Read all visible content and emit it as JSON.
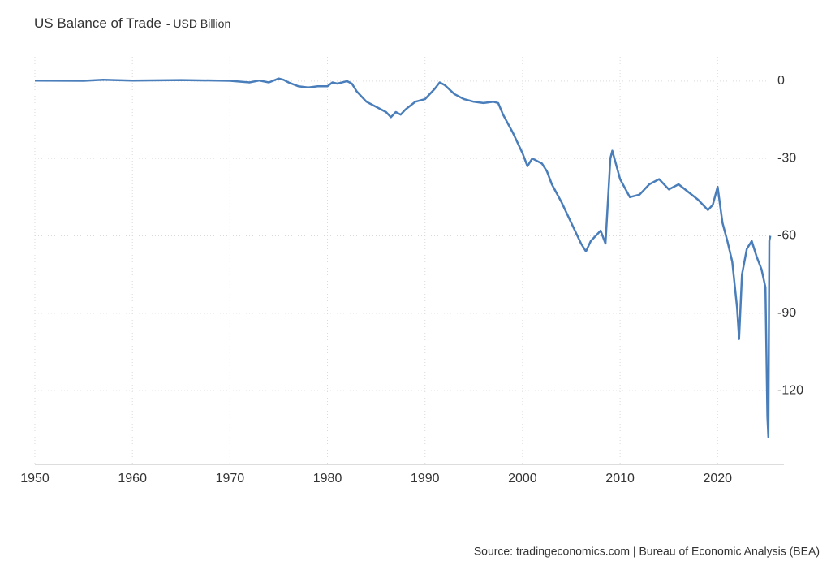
{
  "chart_data": {
    "type": "line",
    "title": "US Balance of Trade",
    "subtitle": "- USD Billion",
    "source": "Source: tradingeconomics.com | Bureau of Economic Analysis (BEA)",
    "xlim": [
      1950,
      2026.8
    ],
    "xticks": [
      1950,
      1960,
      1970,
      1980,
      1990,
      2000,
      2010,
      2020
    ],
    "ylim": [
      -148.6,
      9.4
    ],
    "yticks": [
      0,
      -30,
      -60,
      -90,
      -120
    ],
    "grid": true,
    "series": [
      {
        "name": "Balance of Trade",
        "color": "#4a7ebb",
        "x": [
          1950,
          1955,
          1957,
          1960,
          1965,
          1970,
          1972,
          1973,
          1974,
          1975,
          1975.5,
          1976,
          1977,
          1978,
          1979,
          1980,
          1980.5,
          1981,
          1982,
          1982.5,
          1983,
          1984,
          1985,
          1986,
          1986.5,
          1987,
          1987.5,
          1988,
          1989,
          1990,
          1991,
          1991.5,
          1992,
          1993,
          1994,
          1995,
          1996,
          1997,
          1997.5,
          1998,
          1999,
          2000,
          2000.5,
          2001,
          2002,
          2002.5,
          2003,
          2004,
          2005,
          2006,
          2006.5,
          2007,
          2008,
          2008.5,
          2009,
          2009.2,
          2010,
          2011,
          2012,
          2013,
          2014,
          2015,
          2016,
          2017,
          2018,
          2019,
          2019.5,
          2020,
          2020.5,
          2021,
          2021.5,
          2022,
          2022.2,
          2022.5,
          2023,
          2023.5,
          2024,
          2024.5,
          2024.9,
          2025.1,
          2025.2,
          2025.3,
          2025.4
        ],
        "values": [
          0.2,
          0.1,
          0.5,
          0.2,
          0.4,
          0.1,
          -0.5,
          0.2,
          -0.5,
          1,
          0.5,
          -0.5,
          -2,
          -2.5,
          -2,
          -2,
          -0.5,
          -1,
          0,
          -1,
          -4,
          -8,
          -10,
          -12,
          -14,
          -12,
          -13,
          -11,
          -8,
          -7,
          -3,
          -0.5,
          -1.5,
          -5,
          -7,
          -8,
          -8.5,
          -8,
          -8.5,
          -13,
          -20,
          -28,
          -33,
          -30,
          -32,
          -35,
          -40,
          -47,
          -55,
          -63,
          -66,
          -62,
          -58,
          -63,
          -30,
          -27,
          -38,
          -45,
          -44,
          -40,
          -38,
          -42,
          -40,
          -43,
          -46,
          -50,
          -48,
          -41,
          -55,
          -62,
          -70,
          -88,
          -100,
          -75,
          -65,
          -62,
          -68,
          -73,
          -80,
          -130,
          -138,
          -62,
          -60
        ]
      }
    ]
  }
}
